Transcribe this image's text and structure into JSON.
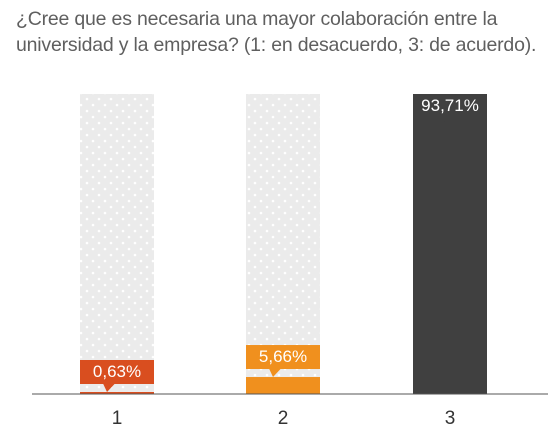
{
  "chart_data": {
    "type": "bar",
    "title": "¿Cree que es necesaria una mayor colaboración entre la universidad y la empresa? (1: en desacuerdo, 3: de acuerdo).",
    "categories": [
      "1",
      "2",
      "3"
    ],
    "values": [
      0.63,
      5.66,
      93.71
    ],
    "value_labels": [
      "0,63%",
      "5,66%",
      "93,71%"
    ],
    "ylim": [
      0,
      100
    ],
    "colors": [
      "#d94e1f",
      "#f0901e",
      "#404040"
    ],
    "background_fill": "#e8e8e8",
    "axis_color": "#555555",
    "grid": false,
    "legend": "none"
  }
}
